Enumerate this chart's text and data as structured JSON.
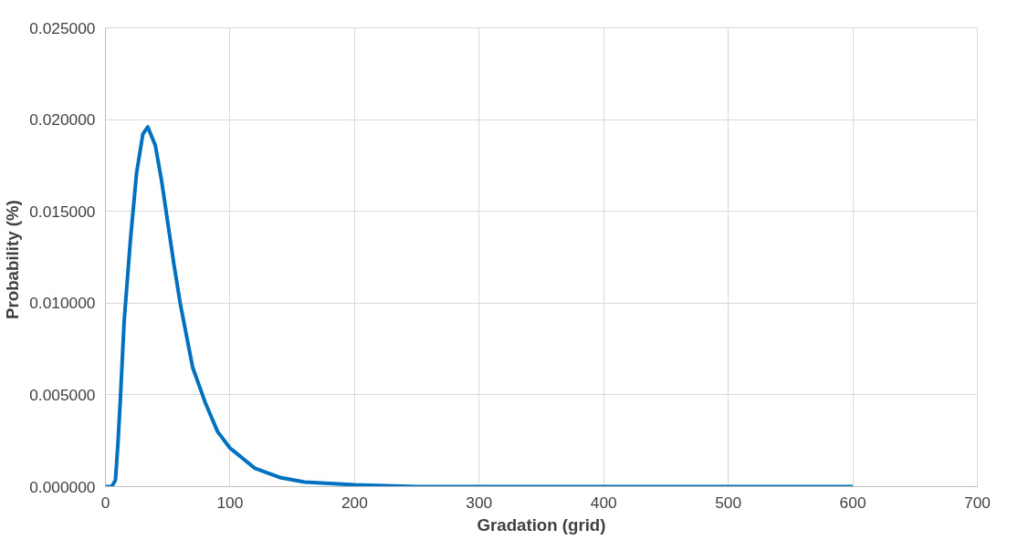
{
  "chart_data": {
    "type": "line",
    "xlabel": "Gradation (grid)",
    "ylabel": "Probability  (%)",
    "series": [
      {
        "color": "#0070c0",
        "x": [
          0,
          5,
          8,
          10,
          12,
          15,
          20,
          25,
          30,
          34,
          40,
          45,
          50,
          55,
          60,
          70,
          80,
          90,
          100,
          120,
          140,
          160,
          200,
          250,
          300,
          400,
          500,
          600
        ],
        "values": [
          0,
          0,
          0.00035,
          0.0023,
          0.0048,
          0.009,
          0.0134,
          0.0171,
          0.0192,
          0.0196,
          0.0186,
          0.0167,
          0.0144,
          0.0121,
          0.01,
          0.0065,
          0.0046,
          0.003,
          0.0021,
          0.001,
          0.0005,
          0.00025,
          0.0001,
          0,
          0,
          0,
          0,
          0
        ]
      }
    ],
    "xlim": [
      0,
      700
    ],
    "xticks": [
      0,
      100,
      200,
      300,
      400,
      500,
      600,
      700
    ],
    "ylim": [
      0,
      0.025
    ],
    "yticks": [
      {
        "value": 0,
        "label": "0.000000"
      },
      {
        "value": 0.005,
        "label": "0.005000"
      },
      {
        "value": 0.01,
        "label": "0.010000"
      },
      {
        "value": 0.015,
        "label": "0.015000"
      },
      {
        "value": 0.02,
        "label": "0.020000"
      },
      {
        "value": 0.025,
        "label": "0.025000"
      }
    ],
    "grid": true,
    "marker": "none",
    "line_style": "solid"
  }
}
